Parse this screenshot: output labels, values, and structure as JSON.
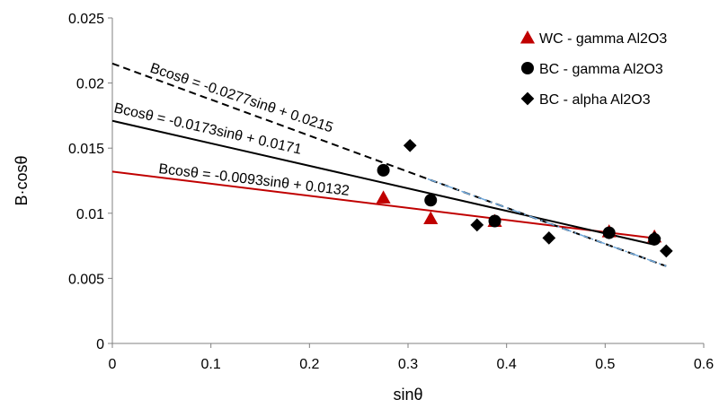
{
  "chart_data": {
    "type": "scatter",
    "xlabel": "sinθ",
    "ylabel": "B·cosθ",
    "xlim": [
      0,
      0.6
    ],
    "ylim": [
      0,
      0.025
    ],
    "x_ticks": [
      "0",
      "0.1",
      "0.2",
      "0.3",
      "0.4",
      "0.5",
      "0.6"
    ],
    "y_ticks": [
      "0",
      "0.005",
      "0.01",
      "0.015",
      "0.02",
      "0.025"
    ],
    "grid": false,
    "legend_position": "top-right",
    "series": [
      {
        "name": "WC - gamma Al2O3",
        "marker": "triangle",
        "color": "#c00000",
        "points": [
          [
            0.275,
            0.0112
          ],
          [
            0.323,
            0.0096
          ],
          [
            0.388,
            0.0094
          ],
          [
            0.504,
            0.0086
          ],
          [
            0.55,
            0.0082
          ]
        ]
      },
      {
        "name": "BC - gamma Al2O3",
        "marker": "circle",
        "color": "#000000",
        "points": [
          [
            0.275,
            0.0133
          ],
          [
            0.323,
            0.011
          ],
          [
            0.388,
            0.0094
          ],
          [
            0.504,
            0.0085
          ],
          [
            0.55,
            0.008
          ]
        ]
      },
      {
        "name": "BC - alpha Al2O3",
        "marker": "diamond",
        "color": "#000000",
        "points": [
          [
            0.302,
            0.0152
          ],
          [
            0.37,
            0.0091
          ],
          [
            0.443,
            0.0081
          ],
          [
            0.55,
            0.0081
          ],
          [
            0.562,
            0.0071
          ]
        ]
      }
    ],
    "trendlines": [
      {
        "label": "Bcosθ = -0.0093sinθ + 0.0132",
        "slope": -0.0093,
        "intercept": 0.0132,
        "x_range": [
          0,
          0.55
        ],
        "color": "#c00000",
        "style": "solid"
      },
      {
        "label": "Bcosθ = -0.0173sinθ + 0.0171",
        "slope": -0.0173,
        "intercept": 0.0171,
        "x_range": [
          0,
          0.55
        ],
        "color": "#000000",
        "style": "solid"
      },
      {
        "label": "Bcosθ = -0.0277sinθ + 0.0215",
        "slope": -0.0277,
        "intercept": 0.0215,
        "x_range": [
          0,
          0.562
        ],
        "color": "#000000",
        "style": "dashed"
      },
      {
        "label": "",
        "slope": -0.0277,
        "intercept": 0.0215,
        "x_range": [
          0.32,
          0.562
        ],
        "color": "#6fa8dc",
        "style": "dashdot"
      }
    ]
  }
}
